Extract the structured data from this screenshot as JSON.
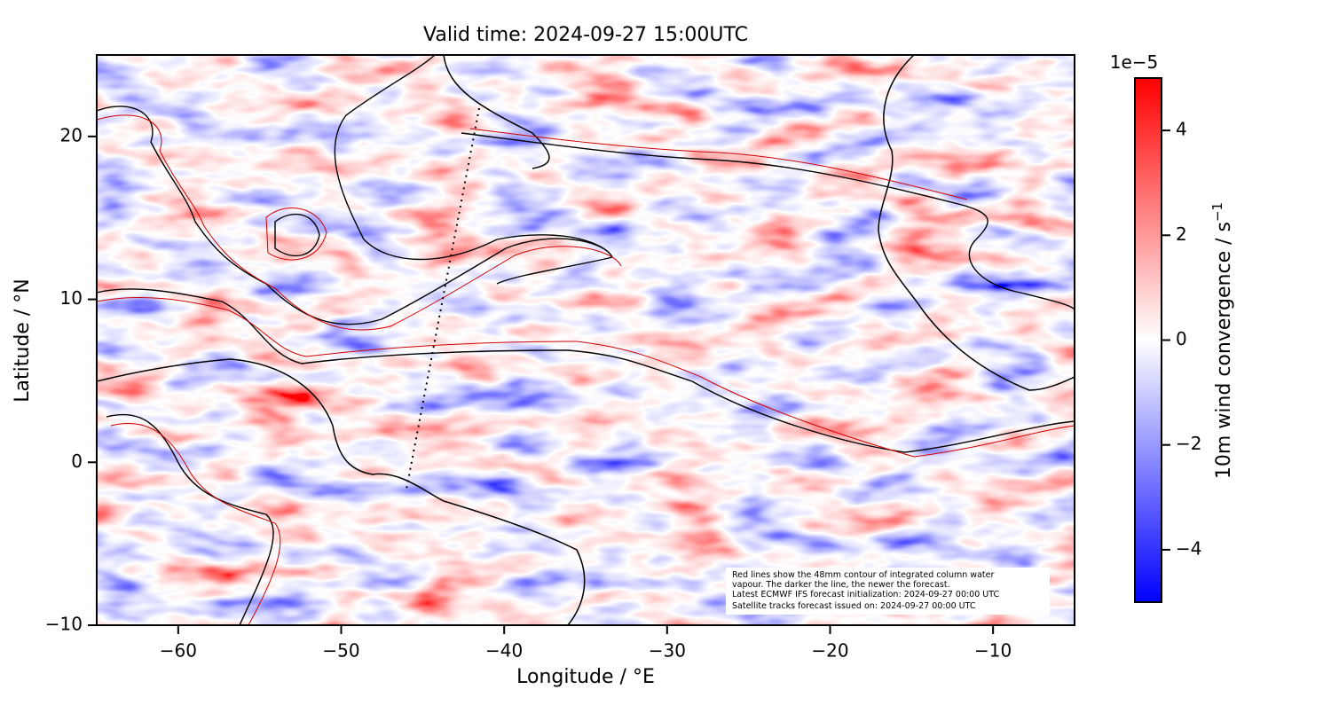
{
  "title": "Valid time: 2024-09-27 15:00UTC",
  "x_label": "Longitude / °E",
  "y_label": "Latitude / °N",
  "xlim": [
    -65,
    -5
  ],
  "ylim": [
    -10,
    25
  ],
  "xticks": [
    {
      "value": -60,
      "label": "−60"
    },
    {
      "value": -50,
      "label": "−50"
    },
    {
      "value": -40,
      "label": "−40"
    },
    {
      "value": -30,
      "label": "−30"
    },
    {
      "value": -20,
      "label": "−20"
    },
    {
      "value": -10,
      "label": "−10"
    }
  ],
  "yticks": [
    {
      "value": -10,
      "label": "−10"
    },
    0,
    10,
    20
  ],
  "colorbar": {
    "label": "10m wind convergence / s",
    "label_exponent": "−1",
    "scale_label": "1e−5",
    "lim": [
      -5,
      5
    ],
    "ticks": [
      {
        "value": -4,
        "label": "−4"
      },
      {
        "value": -2,
        "label": "−2"
      },
      0,
      2,
      4
    ]
  },
  "annotation": [
    "Red lines show the 48mm contour of integrated column water",
    "vapour. The darker the line, the newer the forecast.",
    "Latest ECMWF IFS forecast initialization: 2024-09-27 00:00 UTC",
    "Satellite tracks forecast issued on: 2024-09-27 00:00 UTC"
  ]
}
